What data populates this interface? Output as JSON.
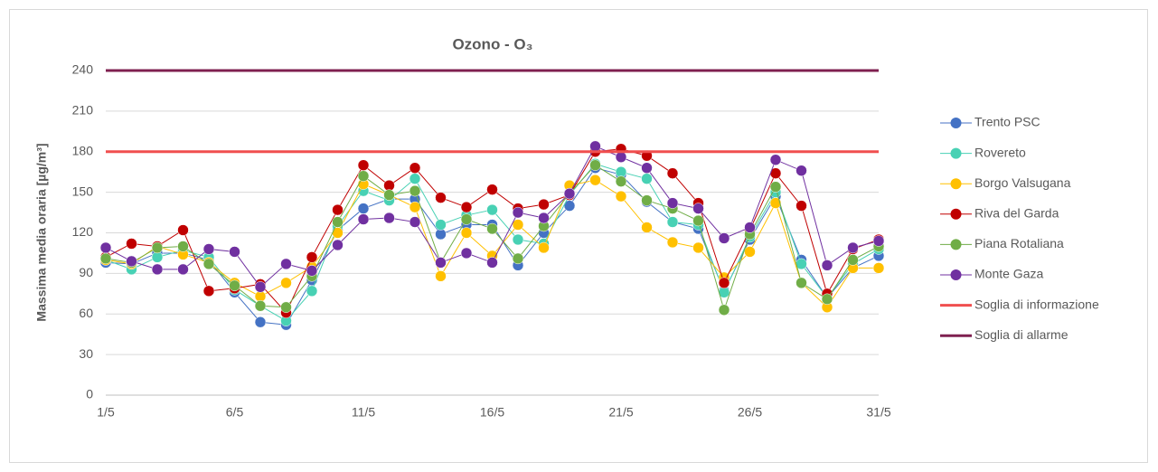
{
  "chart_data": {
    "type": "line",
    "title": "Ozono - O₃",
    "y_label": "Massima media oraria [µg/m³]",
    "categories": [
      "1/5",
      null,
      null,
      null,
      null,
      "6/5",
      null,
      null,
      null,
      null,
      "11/5",
      null,
      null,
      null,
      null,
      "16/5",
      null,
      null,
      null,
      null,
      "21/5",
      null,
      null,
      null,
      null,
      "26/5",
      null,
      null,
      null,
      null,
      "31/5"
    ],
    "ylim": [
      0,
      240
    ],
    "yticks": [
      0,
      30,
      60,
      90,
      120,
      150,
      180,
      210,
      240
    ],
    "grid": true,
    "legend": "right",
    "series": [
      {
        "name": "Trento PSC",
        "color": "#4472c4",
        "marker": true,
        "values": [
          98,
          97,
          105,
          105,
          100,
          76,
          54,
          52,
          85,
          122,
          138,
          145,
          145,
          119,
          126,
          126,
          96,
          120,
          140,
          168,
          163,
          143,
          128,
          123,
          77,
          115,
          147,
          100,
          72,
          94,
          103
        ]
      },
      {
        "name": "Rovereto",
        "color": "#48d1b4",
        "marker": true,
        "values": [
          100,
          93,
          102,
          107,
          102,
          78,
          66,
          55,
          77,
          125,
          151,
          144,
          160,
          126,
          133,
          137,
          115,
          112,
          148,
          171,
          165,
          160,
          128,
          126,
          76,
          117,
          150,
          97,
          72,
          97,
          108
        ]
      },
      {
        "name": "Borgo Valsugana",
        "color": "#ffc000",
        "marker": true,
        "values": [
          100,
          97,
          110,
          104,
          98,
          83,
          73,
          83,
          95,
          120,
          156,
          148,
          139,
          88,
          120,
          103,
          126,
          109,
          155,
          159,
          147,
          124,
          113,
          109,
          87,
          106,
          142,
          83,
          65,
          94,
          94
        ]
      },
      {
        "name": "Riva del Garda",
        "color": "#c00000",
        "marker": true,
        "values": [
          102,
          112,
          110,
          122,
          77,
          79,
          82,
          61,
          102,
          137,
          170,
          155,
          168,
          146,
          139,
          152,
          138,
          141,
          148,
          180,
          182,
          177,
          164,
          142,
          83,
          122,
          164,
          140,
          75,
          108,
          115
        ]
      },
      {
        "name": "Piana Rotaliana",
        "color": "#70ad47",
        "marker": true,
        "values": [
          101,
          98,
          109,
          110,
          97,
          81,
          66,
          65,
          88,
          128,
          162,
          148,
          151,
          98,
          130,
          123,
          101,
          125,
          149,
          170,
          158,
          144,
          138,
          129,
          63,
          119,
          154,
          83,
          71,
          100,
          110
        ]
      },
      {
        "name": "Monte Gaza",
        "color": "#7030a0",
        "marker": true,
        "values": [
          109,
          99,
          93,
          93,
          108,
          106,
          80,
          97,
          92,
          111,
          130,
          131,
          128,
          98,
          105,
          98,
          135,
          131,
          149,
          184,
          176,
          168,
          142,
          138,
          116,
          124,
          174,
          166,
          96,
          109,
          114
        ]
      },
      {
        "name": "Soglia di informazione",
        "color": "#f04f4f",
        "marker": false,
        "values": [
          180,
          180,
          180,
          180,
          180,
          180,
          180,
          180,
          180,
          180,
          180,
          180,
          180,
          180,
          180,
          180,
          180,
          180,
          180,
          180,
          180,
          180,
          180,
          180,
          180,
          180,
          180,
          180,
          180,
          180,
          180
        ]
      },
      {
        "name": "Soglia di allarme",
        "color": "#7f2050",
        "marker": false,
        "values": [
          240,
          240,
          240,
          240,
          240,
          240,
          240,
          240,
          240,
          240,
          240,
          240,
          240,
          240,
          240,
          240,
          240,
          240,
          240,
          240,
          240,
          240,
          240,
          240,
          240,
          240,
          240,
          240,
          240,
          240,
          240
        ]
      }
    ]
  }
}
